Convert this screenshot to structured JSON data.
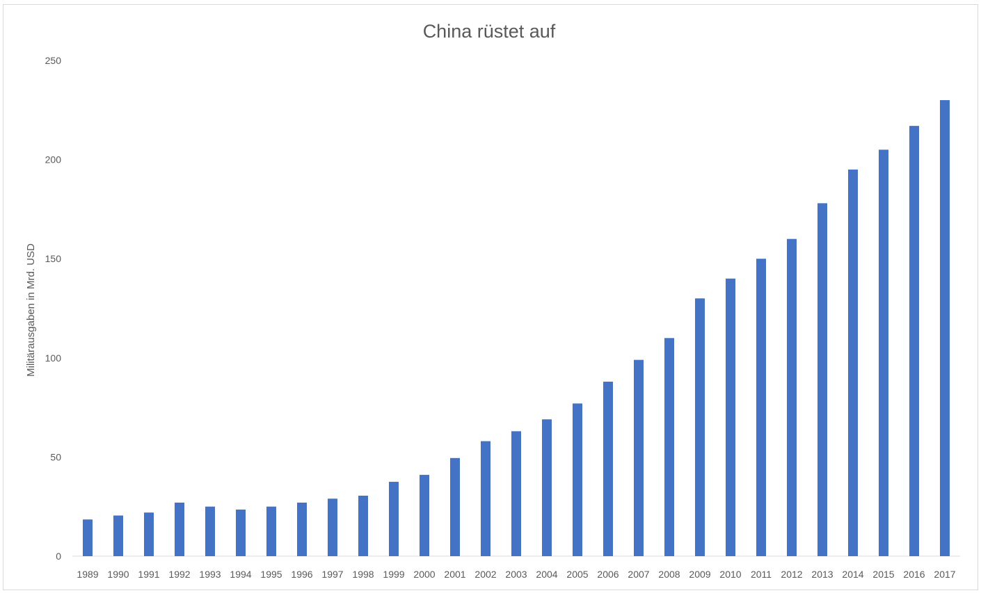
{
  "chart_data": {
    "type": "bar",
    "title": "China rüstet auf",
    "xlabel": "",
    "ylabel": "Militärausgaben in Mrd. USD",
    "ylim": [
      0,
      250
    ],
    "yticks": [
      "0",
      "50",
      "100",
      "150",
      "200",
      "250"
    ],
    "grid": false,
    "legend": "none",
    "bar_color": "#4472c4",
    "categories": [
      "1989",
      "1990",
      "1991",
      "1992",
      "1993",
      "1994",
      "1995",
      "1996",
      "1997",
      "1998",
      "1999",
      "2000",
      "2001",
      "2002",
      "2003",
      "2004",
      "2005",
      "2006",
      "2007",
      "2008",
      "2009",
      "2010",
      "2011",
      "2012",
      "2013",
      "2014",
      "2015",
      "2016",
      "2017"
    ],
    "values": [
      18.5,
      20.5,
      22,
      27,
      25,
      23.5,
      25,
      27,
      29,
      30.5,
      37.5,
      41,
      49.5,
      58,
      63,
      69,
      77,
      88,
      99,
      110,
      130,
      140,
      150,
      160,
      178,
      195,
      205,
      217,
      230
    ]
  }
}
